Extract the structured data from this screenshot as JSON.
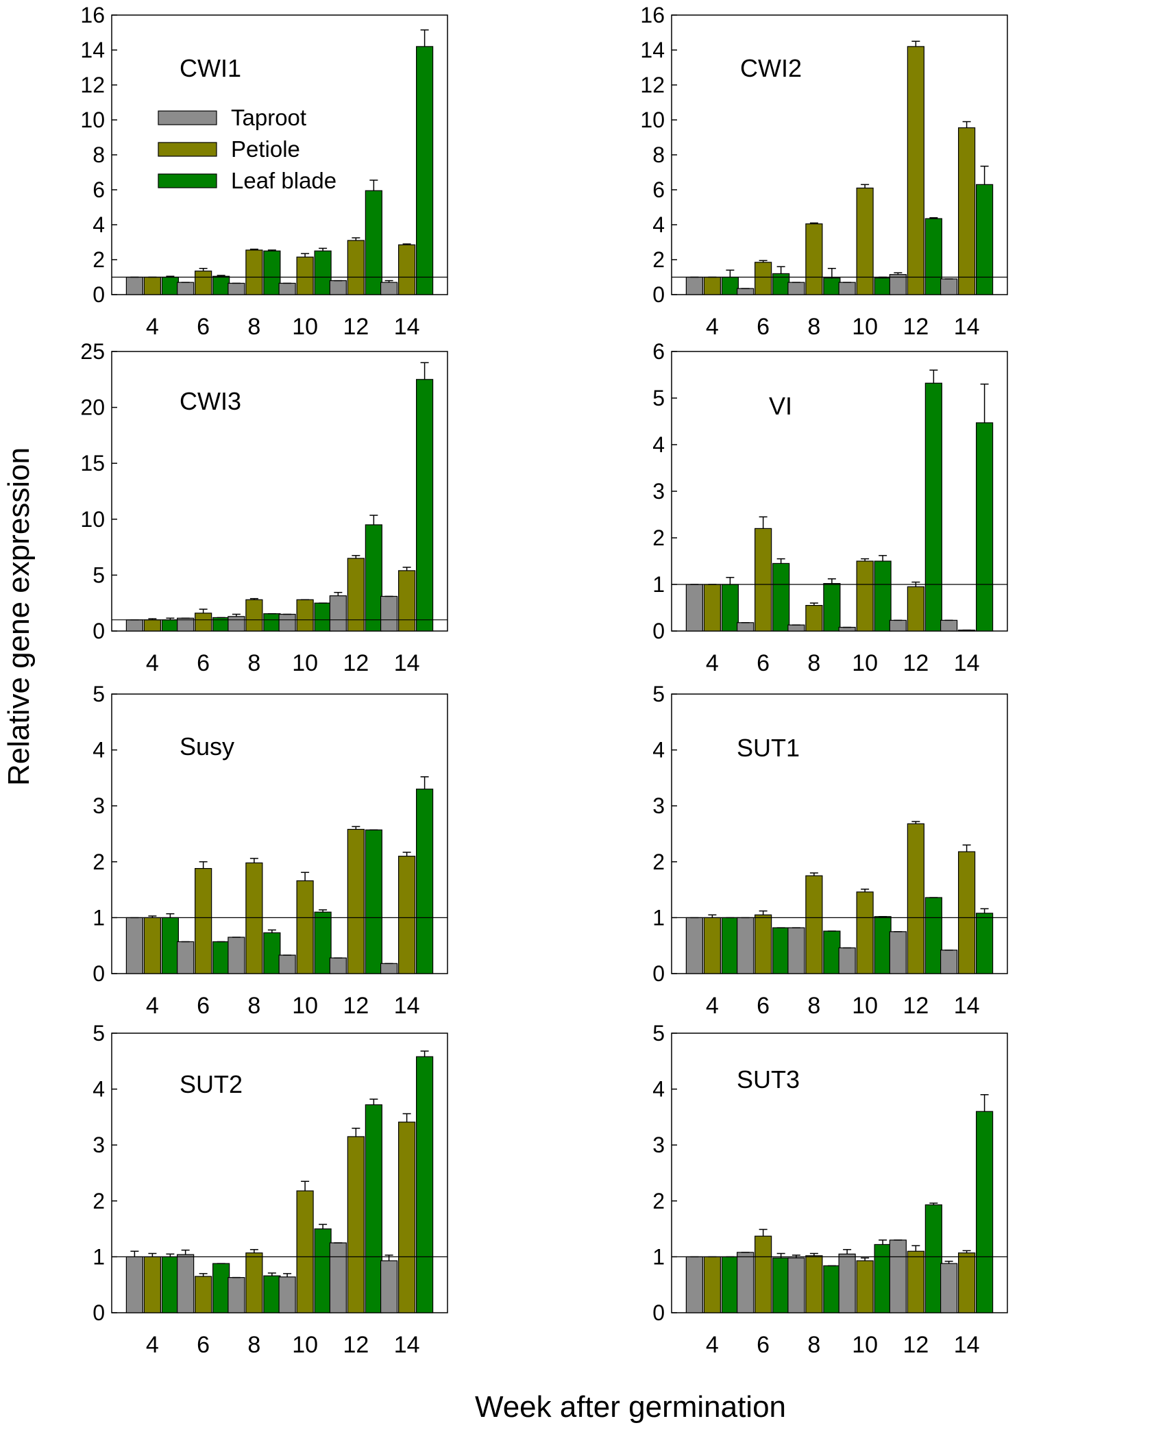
{
  "figure": {
    "ylabel": "Relative gene expression",
    "xlabel": "Week after germination"
  },
  "legend": [
    {
      "name": "Taproot",
      "color": "#8c8c8c"
    },
    {
      "name": "Petiole",
      "color": "#808000"
    },
    {
      "name": "Leaf blade",
      "color": "#008000"
    }
  ],
  "chart_data": [
    {
      "type": "bar",
      "title": "CWI1",
      "categories": [
        "4",
        "6",
        "8",
        "10",
        "12",
        "14"
      ],
      "ylim": [
        0,
        16
      ],
      "yticks": [
        0,
        2,
        4,
        6,
        8,
        10,
        12,
        14,
        16
      ],
      "reference_line": 1,
      "legend_position": "top-left",
      "series": [
        {
          "name": "Taproot",
          "values": [
            1.0,
            0.7,
            0.65,
            0.65,
            0.8,
            0.7
          ],
          "errors": [
            0,
            0,
            0,
            0,
            0,
            0.1
          ]
        },
        {
          "name": "Petiole",
          "values": [
            1.0,
            1.35,
            2.55,
            2.15,
            3.1,
            2.85
          ],
          "errors": [
            0,
            0.15,
            0.05,
            0.2,
            0.15,
            0.05
          ]
        },
        {
          "name": "Leaf blade",
          "values": [
            1.0,
            1.05,
            2.5,
            2.5,
            5.95,
            14.2
          ],
          "errors": [
            0.05,
            0.05,
            0.05,
            0.15,
            0.6,
            0.95
          ]
        }
      ]
    },
    {
      "type": "bar",
      "title": "CWI2",
      "categories": [
        "4",
        "6",
        "8",
        "10",
        "12",
        "14"
      ],
      "ylim": [
        0,
        16
      ],
      "yticks": [
        0,
        2,
        4,
        6,
        8,
        10,
        12,
        14,
        16
      ],
      "reference_line": 1,
      "series": [
        {
          "name": "Taproot",
          "values": [
            1.0,
            0.35,
            0.7,
            0.7,
            1.15,
            0.9
          ],
          "errors": [
            0,
            0,
            0,
            0,
            0.1,
            0
          ]
        },
        {
          "name": "Petiole",
          "values": [
            1.0,
            1.85,
            4.05,
            6.1,
            14.2,
            9.55
          ],
          "errors": [
            0,
            0.1,
            0.05,
            0.2,
            0.3,
            0.35
          ]
        },
        {
          "name": "Leaf blade",
          "values": [
            1.0,
            1.2,
            0.95,
            0.95,
            4.35,
            6.3
          ],
          "errors": [
            0.4,
            0.4,
            0.55,
            0.05,
            0.05,
            1.05
          ]
        }
      ]
    },
    {
      "type": "bar",
      "title": "CWI3",
      "categories": [
        "4",
        "6",
        "8",
        "10",
        "12",
        "14"
      ],
      "ylim": [
        0,
        25
      ],
      "yticks": [
        0,
        5,
        10,
        15,
        20,
        25
      ],
      "reference_line": 1,
      "series": [
        {
          "name": "Taproot",
          "values": [
            1.0,
            1.15,
            1.3,
            1.5,
            3.15,
            3.1
          ],
          "errors": [
            0,
            0,
            0.2,
            0,
            0.3,
            0
          ]
        },
        {
          "name": "Petiole",
          "values": [
            1.0,
            1.6,
            2.8,
            2.8,
            6.5,
            5.4
          ],
          "errors": [
            0.1,
            0.35,
            0.1,
            0,
            0.25,
            0.3
          ]
        },
        {
          "name": "Leaf blade",
          "values": [
            1.0,
            1.2,
            1.55,
            2.5,
            9.5,
            22.5
          ],
          "errors": [
            0.15,
            0,
            0,
            0,
            0.85,
            1.5
          ]
        }
      ]
    },
    {
      "type": "bar",
      "title": "VI",
      "categories": [
        "4",
        "6",
        "8",
        "10",
        "12",
        "14"
      ],
      "ylim": [
        0,
        6
      ],
      "yticks": [
        0,
        1,
        2,
        3,
        4,
        5,
        6
      ],
      "reference_line": 1,
      "series": [
        {
          "name": "Taproot",
          "values": [
            1.0,
            0.18,
            0.13,
            0.08,
            0.23,
            0.23
          ],
          "errors": [
            0,
            0,
            0,
            0,
            0,
            0
          ]
        },
        {
          "name": "Petiole",
          "values": [
            1.0,
            2.2,
            0.55,
            1.5,
            0.95,
            0.02
          ],
          "errors": [
            0,
            0.25,
            0.05,
            0.05,
            0.1,
            0
          ]
        },
        {
          "name": "Leaf blade",
          "values": [
            1.0,
            1.45,
            1.02,
            1.5,
            5.32,
            4.47
          ],
          "errors": [
            0.15,
            0.1,
            0.1,
            0.12,
            0.28,
            0.83
          ]
        }
      ]
    },
    {
      "type": "bar",
      "title": "Susy",
      "categories": [
        "4",
        "6",
        "8",
        "10",
        "12",
        "14"
      ],
      "ylim": [
        0,
        5
      ],
      "yticks": [
        0,
        1,
        2,
        3,
        4,
        5
      ],
      "reference_line": 1,
      "series": [
        {
          "name": "Taproot",
          "values": [
            1.0,
            0.57,
            0.65,
            0.33,
            0.28,
            0.18
          ],
          "errors": [
            0,
            0,
            0,
            0,
            0,
            0
          ]
        },
        {
          "name": "Petiole",
          "values": [
            1.0,
            1.88,
            1.98,
            1.66,
            2.58,
            2.1
          ],
          "errors": [
            0.03,
            0.12,
            0.08,
            0.15,
            0.05,
            0.07
          ]
        },
        {
          "name": "Leaf blade",
          "values": [
            1.0,
            0.57,
            0.73,
            1.1,
            2.57,
            3.3
          ],
          "errors": [
            0.07,
            0,
            0.05,
            0.04,
            0,
            0.22
          ]
        }
      ]
    },
    {
      "type": "bar",
      "title": "SUT1",
      "categories": [
        "4",
        "6",
        "8",
        "10",
        "12",
        "14"
      ],
      "ylim": [
        0,
        5
      ],
      "yticks": [
        0,
        1,
        2,
        3,
        4,
        5
      ],
      "reference_line": 1,
      "series": [
        {
          "name": "Taproot",
          "values": [
            1.0,
            1.0,
            0.82,
            0.46,
            0.75,
            0.42
          ],
          "errors": [
            0,
            0,
            0,
            0,
            0,
            0
          ]
        },
        {
          "name": "Petiole",
          "values": [
            1.0,
            1.05,
            1.75,
            1.46,
            2.68,
            2.18
          ],
          "errors": [
            0.05,
            0.07,
            0.05,
            0.05,
            0.04,
            0.12
          ]
        },
        {
          "name": "Leaf blade",
          "values": [
            1.0,
            0.82,
            0.76,
            1.02,
            1.36,
            1.08
          ],
          "errors": [
            0,
            0,
            0,
            0,
            0,
            0.08
          ]
        }
      ]
    },
    {
      "type": "bar",
      "title": "SUT2",
      "categories": [
        "4",
        "6",
        "8",
        "10",
        "12",
        "14"
      ],
      "ylim": [
        0,
        5
      ],
      "yticks": [
        0,
        1,
        2,
        3,
        4,
        5
      ],
      "reference_line": 1,
      "series": [
        {
          "name": "Taproot",
          "values": [
            1.0,
            1.04,
            0.63,
            0.64,
            1.25,
            0.93
          ],
          "errors": [
            0.1,
            0.08,
            0,
            0.06,
            0,
            0.1
          ]
        },
        {
          "name": "Petiole",
          "values": [
            1.0,
            0.65,
            1.07,
            2.18,
            3.15,
            3.41
          ],
          "errors": [
            0.06,
            0.05,
            0.06,
            0.17,
            0.15,
            0.15
          ]
        },
        {
          "name": "Leaf blade",
          "values": [
            1.0,
            0.88,
            0.66,
            1.5,
            3.72,
            4.58
          ],
          "errors": [
            0.05,
            0,
            0.05,
            0.08,
            0.1,
            0.1
          ]
        }
      ]
    },
    {
      "type": "bar",
      "title": "SUT3",
      "categories": [
        "4",
        "6",
        "8",
        "10",
        "12",
        "14"
      ],
      "ylim": [
        0,
        5
      ],
      "yticks": [
        0,
        1,
        2,
        3,
        4,
        5
      ],
      "reference_line": 1,
      "series": [
        {
          "name": "Taproot",
          "values": [
            1.0,
            1.08,
            0.98,
            1.05,
            1.3,
            0.88
          ],
          "errors": [
            0,
            0,
            0.05,
            0.08,
            0,
            0.04
          ]
        },
        {
          "name": "Petiole",
          "values": [
            1.0,
            1.37,
            1.02,
            0.93,
            1.1,
            1.07
          ],
          "errors": [
            0,
            0.12,
            0.04,
            0.05,
            0.1,
            0.04
          ]
        },
        {
          "name": "Leaf blade",
          "values": [
            1.0,
            0.98,
            0.84,
            1.22,
            1.93,
            3.6
          ],
          "errors": [
            0,
            0.08,
            0,
            0.08,
            0.03,
            0.3
          ]
        }
      ]
    }
  ]
}
